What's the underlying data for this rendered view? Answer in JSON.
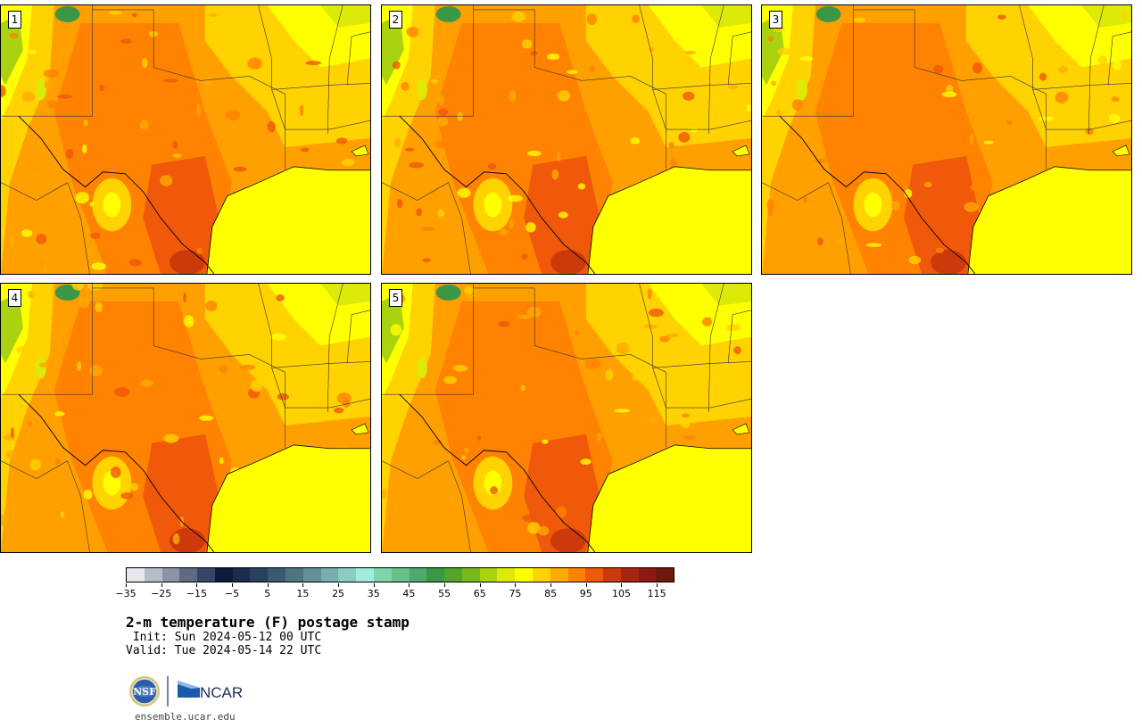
{
  "panels": [
    {
      "label": "1"
    },
    {
      "label": "2"
    },
    {
      "label": "3"
    },
    {
      "label": "4"
    },
    {
      "label": "5"
    }
  ],
  "colorbar": {
    "colors": [
      "#e5e8ec",
      "#b7bccb",
      "#8c93a6",
      "#5f6a85",
      "#36466b",
      "#0f1a38",
      "#1b2c4d",
      "#2a405f",
      "#3a5a70",
      "#4f7680",
      "#62909a",
      "#78aeb0",
      "#8ccdc3",
      "#a1ecdc",
      "#7fd4a9",
      "#66c189",
      "#4fab6b",
      "#3b9646",
      "#52a52a",
      "#79ba1a",
      "#aad20f",
      "#ddea08",
      "#ffff00",
      "#ffd200",
      "#ffaa00",
      "#ff8200",
      "#f0580a",
      "#cc3a0c",
      "#a82310",
      "#8c1a10",
      "#6e1810"
    ],
    "tick_labels": [
      "−35",
      "−25",
      "−15",
      "−5",
      "5",
      "15",
      "25",
      "35",
      "45",
      "55",
      "65",
      "75",
      "85",
      "95",
      "105",
      "115"
    ]
  },
  "title": "2-m temperature (F) postage stamp",
  "init": " Init: Sun 2024-05-12 00 UTC",
  "valid": "Valid: Tue 2024-05-14 22 UTC",
  "logos": {
    "left": "NSF",
    "right": "NCAR"
  },
  "site": "ensemble.ucar.edu"
}
